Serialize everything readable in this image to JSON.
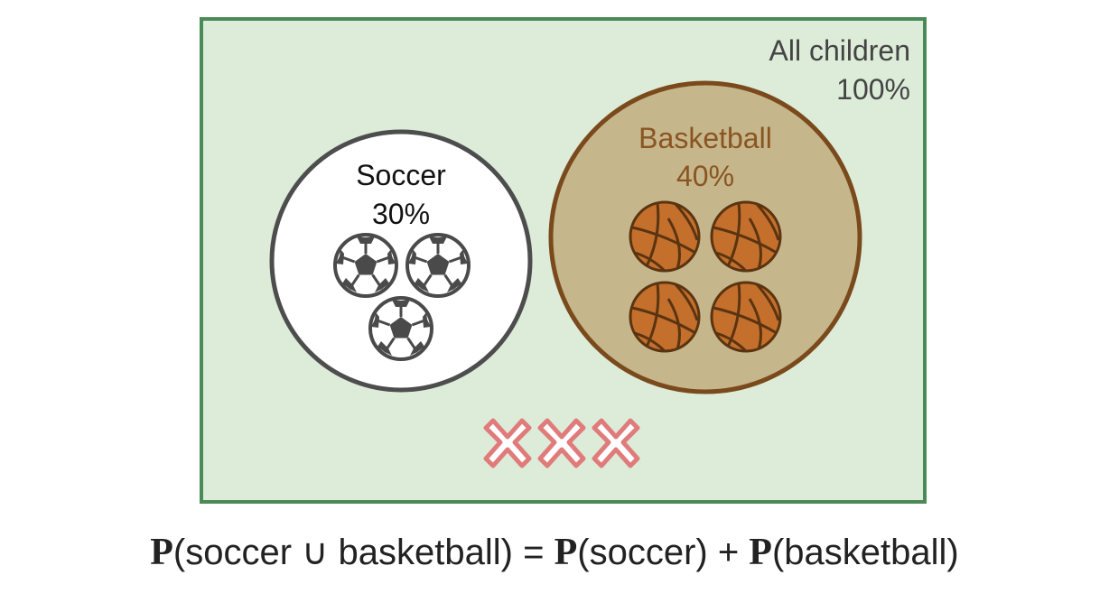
{
  "universe": {
    "label": "All children",
    "value": "100%"
  },
  "sets": [
    {
      "name": "Soccer",
      "value": "30%",
      "icon": "soccer-ball-icon",
      "icon_count": 3
    },
    {
      "name": "Basketball",
      "value": "40%",
      "icon": "basketball-icon",
      "icon_count": 4
    }
  ],
  "neither": {
    "icon": "x-mark-icon",
    "count": 3
  },
  "formula": {
    "p": "P",
    "lhs": "(soccer ∪ basketball) = ",
    "t1": "(soccer) + ",
    "t2": "(basketball)"
  },
  "colors": {
    "universe_fill": "#dcecd9",
    "universe_border": "#4a8a57",
    "soccer_fill": "#ffffff",
    "soccer_border": "#4d4d4d",
    "basketball_fill": "#c6b68c",
    "basketball_border": "#7a4a1c",
    "basketball_text": "#8a5521",
    "ball_orange": "#c46f2c",
    "x_mark": "#e07b7b"
  }
}
